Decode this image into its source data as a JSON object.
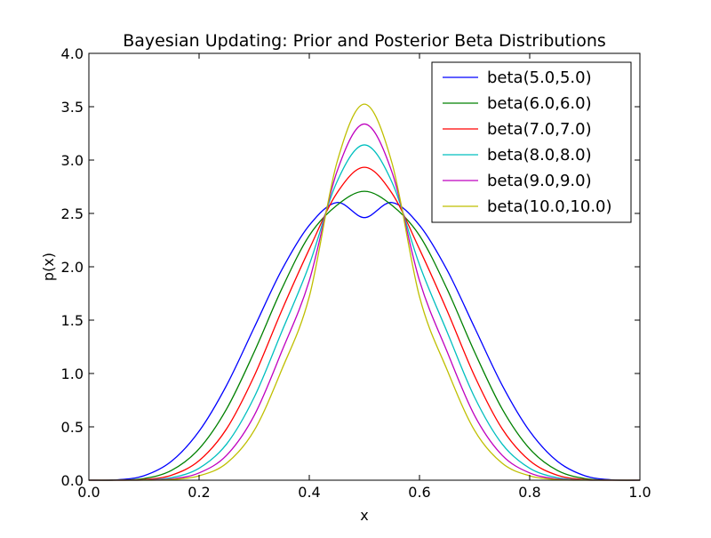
{
  "chart_data": {
    "type": "line",
    "title": "Bayesian Updating: Prior and Posterior Beta Distributions",
    "xlabel": "x",
    "ylabel": "p(x)",
    "xlim": [
      0.0,
      1.0
    ],
    "ylim": [
      0.0,
      4.0
    ],
    "xticks": [
      "0.0",
      "0.2",
      "0.4",
      "0.6",
      "0.8",
      "1.0"
    ],
    "yticks": [
      "0.0",
      "0.5",
      "1.0",
      "1.5",
      "2.0",
      "2.5",
      "3.0",
      "3.5",
      "4.0"
    ],
    "grid": false,
    "legend_position": "top-right",
    "x": [
      0.0,
      0.05,
      0.1,
      0.15,
      0.2,
      0.25,
      0.3,
      0.35,
      0.4,
      0.45,
      0.5,
      0.55,
      0.6,
      0.65,
      0.7,
      0.75,
      0.8,
      0.85,
      0.9,
      0.95,
      1.0
    ],
    "series": [
      {
        "name": "beta(5.0,5.0)",
        "color": "#0000ff",
        "values": [
          0.0,
          0.003,
          0.042,
          0.178,
          0.459,
          0.89,
          1.43,
          1.97,
          2.389,
          2.602,
          2.461,
          2.602,
          2.389,
          1.97,
          1.43,
          0.89,
          0.459,
          0.178,
          0.042,
          0.003,
          0.0
        ]
      },
      {
        "name": "beta(6.0,6.0)",
        "color": "#008000",
        "values": [
          0.0,
          0.001,
          0.016,
          0.092,
          0.294,
          0.668,
          1.201,
          1.792,
          2.293,
          2.576,
          2.707,
          2.576,
          2.293,
          1.792,
          1.201,
          0.668,
          0.294,
          0.092,
          0.016,
          0.001,
          0.0
        ]
      },
      {
        "name": "beta(7.0,7.0)",
        "color": "#ff0000",
        "values": [
          0.0,
          0.0002,
          0.006,
          0.047,
          0.183,
          0.482,
          0.976,
          1.59,
          2.165,
          2.69,
          2.932,
          2.69,
          2.165,
          1.59,
          0.976,
          0.482,
          0.183,
          0.047,
          0.006,
          0.0002,
          0.0
        ]
      },
      {
        "name": "beta(8.0,8.0)",
        "color": "#00bfbf",
        "values": [
          0.0,
          0.0001,
          0.002,
          0.024,
          0.112,
          0.339,
          0.777,
          1.391,
          2.019,
          2.794,
          3.142,
          2.794,
          2.019,
          1.391,
          0.777,
          0.339,
          0.112,
          0.024,
          0.002,
          0.0001,
          0.0
        ]
      },
      {
        "name": "beta(9.0,9.0)",
        "color": "#bf00bf",
        "values": [
          0.0,
          0.0,
          0.001,
          0.012,
          0.068,
          0.234,
          0.606,
          1.206,
          1.87,
          2.888,
          3.338,
          2.888,
          1.87,
          1.206,
          0.606,
          0.234,
          0.068,
          0.012,
          0.001,
          0.0,
          0.0
        ]
      },
      {
        "name": "beta(10.0,10.0)",
        "color": "#bfbf00",
        "values": [
          0.0,
          0.0,
          0.0003,
          0.006,
          0.041,
          0.159,
          0.466,
          1.035,
          1.72,
          2.974,
          3.524,
          2.974,
          1.72,
          1.035,
          0.466,
          0.159,
          0.041,
          0.006,
          0.0003,
          0.0,
          0.0
        ]
      }
    ]
  }
}
